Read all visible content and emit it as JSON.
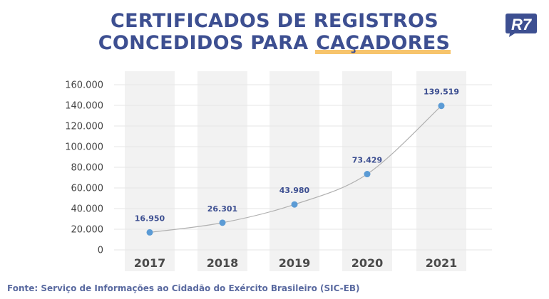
{
  "title": {
    "line1": "CERTIFICADOS DE REGISTROS",
    "line2_prefix": "CONCEDIDOS PARA ",
    "line2_highlight": "CAÇADORES"
  },
  "logo": {
    "text": "R7",
    "color": "#3d4f91"
  },
  "source": "Fonte: Serviço de Informações ao Cidadão do Exército Brasileiro (SIC-EB)",
  "colors": {
    "title": "#3d4f91",
    "highlight": "#f7c46c",
    "marker": "#5b9bd5",
    "label": "#3d4f91",
    "band": "#f2f2f2",
    "line": "#b0b0b0",
    "grid": "#e6e6e6"
  },
  "chart_data": {
    "type": "line",
    "categories": [
      "2017",
      "2018",
      "2019",
      "2020",
      "2021"
    ],
    "values": [
      16950,
      26301,
      43980,
      73429,
      139519
    ],
    "data_labels": [
      "16.950",
      "26.301",
      "43.980",
      "73.429",
      "139.519"
    ],
    "y_ticks": [
      0,
      20000,
      40000,
      60000,
      80000,
      100000,
      120000,
      140000,
      160000
    ],
    "y_tick_labels": [
      "0",
      "20.000",
      "40.000",
      "60.000",
      "80.000",
      "100.000",
      "120.000",
      "140.000",
      "160.000"
    ],
    "ylim": [
      0,
      160000
    ],
    "grid": true,
    "legend": "none"
  }
}
